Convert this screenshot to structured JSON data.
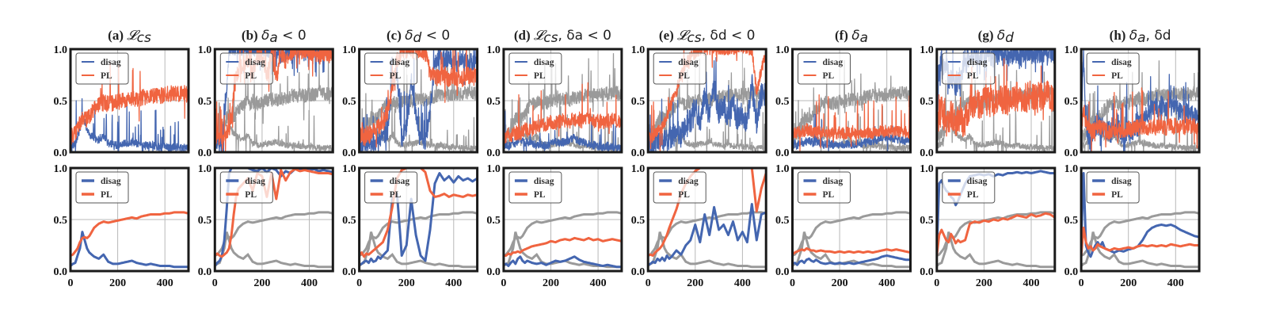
{
  "chart_data": {
    "type": "line",
    "layout": "2 rows x 8 columns of subplots",
    "row_descriptions": [
      "raw (noisy) per-step values",
      "smoothed values"
    ],
    "x": {
      "range": [
        0,
        500
      ],
      "ticks": [
        0,
        200,
        400
      ],
      "tick_labels": [
        "0",
        "200",
        "400"
      ]
    },
    "y": {
      "range": [
        0,
        1
      ],
      "ticks": [
        0,
        0.5,
        1
      ],
      "tick_labels": [
        "0.0",
        "0.5",
        "1.0"
      ]
    },
    "grid": true,
    "legend": {
      "placement": "top-left",
      "entries": [
        "disag",
        "PL"
      ]
    },
    "colors": {
      "disag": "#4466b0",
      "PL": "#f06440",
      "reference": "#9a9a9a"
    },
    "reference_series_note": "two grey curves (disag and PL of panel (a)) repeated as reference in panels b-h",
    "x_samples": [
      0,
      10,
      20,
      30,
      40,
      50,
      60,
      70,
      80,
      90,
      100,
      120,
      140,
      160,
      180,
      200,
      220,
      240,
      260,
      280,
      300,
      320,
      340,
      360,
      380,
      400,
      420,
      440,
      460,
      480,
      500
    ],
    "panels": [
      {
        "id": "a",
        "label": "(a)",
        "math": "𝓛",
        "math_sub": "cs",
        "suffix": "",
        "title": "(a) L_cs",
        "smooth": {
          "disag": [
            0.05,
            0.07,
            0.08,
            0.15,
            0.22,
            0.38,
            0.3,
            0.22,
            0.18,
            0.16,
            0.14,
            0.12,
            0.16,
            0.09,
            0.07,
            0.07,
            0.08,
            0.09,
            0.1,
            0.08,
            0.07,
            0.06,
            0.07,
            0.06,
            0.05,
            0.05,
            0.05,
            0.04,
            0.04,
            0.04,
            0.04
          ],
          "PL": [
            0.15,
            0.16,
            0.19,
            0.22,
            0.28,
            0.32,
            0.33,
            0.32,
            0.34,
            0.38,
            0.42,
            0.46,
            0.48,
            0.47,
            0.48,
            0.49,
            0.5,
            0.51,
            0.52,
            0.51,
            0.53,
            0.54,
            0.55,
            0.55,
            0.55,
            0.56,
            0.56,
            0.57,
            0.57,
            0.57,
            0.56
          ]
        },
        "raw": {
          "disag_noise": 0.04,
          "disag_spikes": 0.09,
          "PL_noise": 0.08,
          "PL_spikes": 0.03
        }
      },
      {
        "id": "b",
        "label": "(b)",
        "math": "δ",
        "math_sub": "a",
        "suffix": " < 0",
        "title": "(b) δ_a < 0",
        "smooth": {
          "disag": [
            0.05,
            0.08,
            0.1,
            0.15,
            0.3,
            0.6,
            0.95,
            1.0,
            1.0,
            1.0,
            1.0,
            1.0,
            1.0,
            0.98,
            0.97,
            1.0,
            0.96,
            1.0,
            0.98,
            0.92,
            0.97,
            0.95,
            0.99,
            0.98,
            1.0,
            0.98,
            0.99,
            0.97,
            0.98,
            0.97,
            0.96
          ],
          "PL": [
            0.15,
            0.17,
            0.15,
            0.14,
            0.16,
            0.18,
            0.22,
            0.35,
            0.55,
            0.72,
            0.8,
            0.85,
            0.9,
            0.78,
            0.95,
            0.92,
            0.72,
            0.95,
            0.7,
            0.98,
            0.88,
            0.96,
            0.99,
            0.97,
            0.98,
            0.97,
            0.96,
            0.95,
            0.95,
            0.95,
            0.94
          ]
        },
        "raw": {
          "disag_noise": 0.06,
          "disag_spikes": 0.2,
          "PL_noise": 0.08,
          "PL_spikes": 0.15
        }
      },
      {
        "id": "c",
        "label": "(c)",
        "math": "δ",
        "math_sub": "d",
        "suffix": " < 0",
        "title": "(c) δ_d < 0",
        "smooth": {
          "disag": [
            0.06,
            0.07,
            0.09,
            0.1,
            0.08,
            0.12,
            0.09,
            0.1,
            0.14,
            0.12,
            0.15,
            0.2,
            0.7,
            0.75,
            0.15,
            0.25,
            0.7,
            0.35,
            0.15,
            0.1,
            0.4,
            0.85,
            0.95,
            0.88,
            0.92,
            0.86,
            0.92,
            0.88,
            0.9,
            0.87,
            0.9
          ],
          "PL": [
            0.15,
            0.18,
            0.14,
            0.17,
            0.16,
            0.18,
            0.2,
            0.22,
            0.24,
            0.26,
            0.28,
            0.4,
            0.62,
            0.9,
            0.98,
            1.0,
            1.0,
            1.0,
            1.0,
            0.96,
            0.78,
            0.72,
            0.73,
            0.75,
            0.72,
            0.74,
            0.73,
            0.72,
            0.74,
            0.73,
            0.74
          ]
        },
        "raw": {
          "disag_noise": 0.08,
          "disag_spikes": 0.12,
          "PL_noise": 0.09,
          "PL_spikes": 0.05
        }
      },
      {
        "id": "d",
        "label": "(d)",
        "math": "𝓛",
        "math_sub": "cs",
        "suffix": ", δ_a < 0",
        "title": "(d) L_cs, δ_a < 0",
        "smooth": {
          "disag": [
            0.06,
            0.07,
            0.05,
            0.08,
            0.1,
            0.07,
            0.12,
            0.14,
            0.1,
            0.08,
            0.1,
            0.08,
            0.07,
            0.08,
            0.06,
            0.08,
            0.1,
            0.09,
            0.1,
            0.12,
            0.14,
            0.11,
            0.09,
            0.08,
            0.07,
            0.06,
            0.05,
            0.06,
            0.05,
            0.04,
            0.04
          ],
          "PL": [
            0.15,
            0.15,
            0.17,
            0.16,
            0.18,
            0.18,
            0.19,
            0.18,
            0.2,
            0.21,
            0.22,
            0.24,
            0.25,
            0.26,
            0.27,
            0.29,
            0.28,
            0.3,
            0.31,
            0.3,
            0.32,
            0.31,
            0.3,
            0.32,
            0.3,
            0.31,
            0.29,
            0.3,
            0.31,
            0.3,
            0.29
          ]
        },
        "raw": {
          "disag_noise": 0.04,
          "disag_spikes": 0.03,
          "PL_noise": 0.07,
          "PL_spikes": 0.06
        }
      },
      {
        "id": "e",
        "label": "(e)",
        "math": "𝓛",
        "math_sub": "cs",
        "suffix": ", δ_d < 0",
        "title": "(e) L_cs, δ_d < 0",
        "smooth": {
          "disag": [
            0.06,
            0.07,
            0.09,
            0.08,
            0.12,
            0.1,
            0.13,
            0.1,
            0.15,
            0.12,
            0.14,
            0.2,
            0.16,
            0.25,
            0.3,
            0.45,
            0.28,
            0.55,
            0.35,
            0.62,
            0.4,
            0.45,
            0.35,
            0.48,
            0.3,
            0.38,
            0.28,
            0.65,
            0.3,
            0.55,
            0.57
          ],
          "PL": [
            0.15,
            0.16,
            0.15,
            0.18,
            0.2,
            0.22,
            0.25,
            0.3,
            0.35,
            0.42,
            0.48,
            0.6,
            0.75,
            0.85,
            0.92,
            0.97,
            1.0,
            1.0,
            1.0,
            1.0,
            1.0,
            1.0,
            1.0,
            1.0,
            1.0,
            1.0,
            1.0,
            1.0,
            0.58,
            0.8,
            0.95
          ]
        },
        "raw": {
          "disag_noise": 0.12,
          "disag_spikes": 0.06,
          "PL_noise": 0.06,
          "PL_spikes": 0.05
        }
      },
      {
        "id": "f",
        "label": "(f)",
        "math": "δ",
        "math_sub": "a",
        "suffix": "",
        "title": "(f) δ_a",
        "smooth": {
          "disag": [
            0.07,
            0.08,
            0.06,
            0.09,
            0.1,
            0.08,
            0.11,
            0.12,
            0.1,
            0.09,
            0.11,
            0.08,
            0.07,
            0.08,
            0.07,
            0.08,
            0.07,
            0.08,
            0.07,
            0.08,
            0.09,
            0.1,
            0.11,
            0.12,
            0.14,
            0.15,
            0.14,
            0.13,
            0.12,
            0.11,
            0.11
          ],
          "PL": [
            0.16,
            0.18,
            0.19,
            0.2,
            0.21,
            0.2,
            0.22,
            0.21,
            0.2,
            0.2,
            0.19,
            0.2,
            0.19,
            0.19,
            0.18,
            0.19,
            0.18,
            0.19,
            0.18,
            0.19,
            0.18,
            0.19,
            0.18,
            0.19,
            0.2,
            0.21,
            0.2,
            0.21,
            0.2,
            0.19,
            0.18
          ]
        },
        "raw": {
          "disag_noise": 0.04,
          "disag_spikes": 0.03,
          "PL_noise": 0.06,
          "PL_spikes": 0.06
        }
      },
      {
        "id": "g",
        "label": "(g)",
        "math": "δ",
        "math_sub": "d",
        "suffix": "",
        "title": "(g) δ_d",
        "smooth": {
          "disag": [
            0.2,
            0.85,
            0.88,
            0.82,
            0.78,
            0.76,
            0.72,
            0.7,
            0.64,
            0.68,
            0.74,
            0.85,
            0.92,
            0.93,
            0.94,
            0.93,
            0.94,
            0.92,
            0.94,
            0.93,
            0.95,
            0.95,
            0.96,
            0.95,
            0.96,
            0.95,
            0.96,
            0.97,
            0.96,
            0.95,
            0.95
          ],
          "PL": [
            0.15,
            0.35,
            0.4,
            0.35,
            0.3,
            0.28,
            0.36,
            0.32,
            0.27,
            0.3,
            0.28,
            0.3,
            0.46,
            0.48,
            0.47,
            0.49,
            0.48,
            0.5,
            0.49,
            0.51,
            0.5,
            0.52,
            0.54,
            0.53,
            0.52,
            0.55,
            0.53,
            0.54,
            0.56,
            0.55,
            0.52
          ]
        },
        "raw": {
          "disag_noise": 0.1,
          "disag_spikes": 0.2,
          "PL_noise": 0.15,
          "PL_spikes": 0.05
        }
      },
      {
        "id": "h",
        "label": "(h)",
        "math": "δ",
        "math_sub": "a",
        "suffix": ", δ_d",
        "title": "(h) δ_a, δ_d",
        "smooth": {
          "disag": [
            0.3,
            0.95,
            0.25,
            0.18,
            0.14,
            0.2,
            0.25,
            0.28,
            0.24,
            0.28,
            0.22,
            0.2,
            0.18,
            0.2,
            0.19,
            0.21,
            0.22,
            0.24,
            0.3,
            0.38,
            0.42,
            0.44,
            0.45,
            0.44,
            0.45,
            0.43,
            0.4,
            0.38,
            0.36,
            0.34,
            0.33
          ],
          "PL": [
            0.15,
            0.42,
            0.28,
            0.22,
            0.24,
            0.2,
            0.22,
            0.26,
            0.24,
            0.23,
            0.22,
            0.2,
            0.22,
            0.21,
            0.22,
            0.23,
            0.22,
            0.24,
            0.25,
            0.24,
            0.25,
            0.24,
            0.25,
            0.24,
            0.26,
            0.25,
            0.24,
            0.25,
            0.26,
            0.25,
            0.25
          ]
        },
        "raw": {
          "disag_noise": 0.1,
          "disag_spikes": 0.12,
          "PL_noise": 0.08,
          "PL_spikes": 0.05
        }
      }
    ]
  }
}
